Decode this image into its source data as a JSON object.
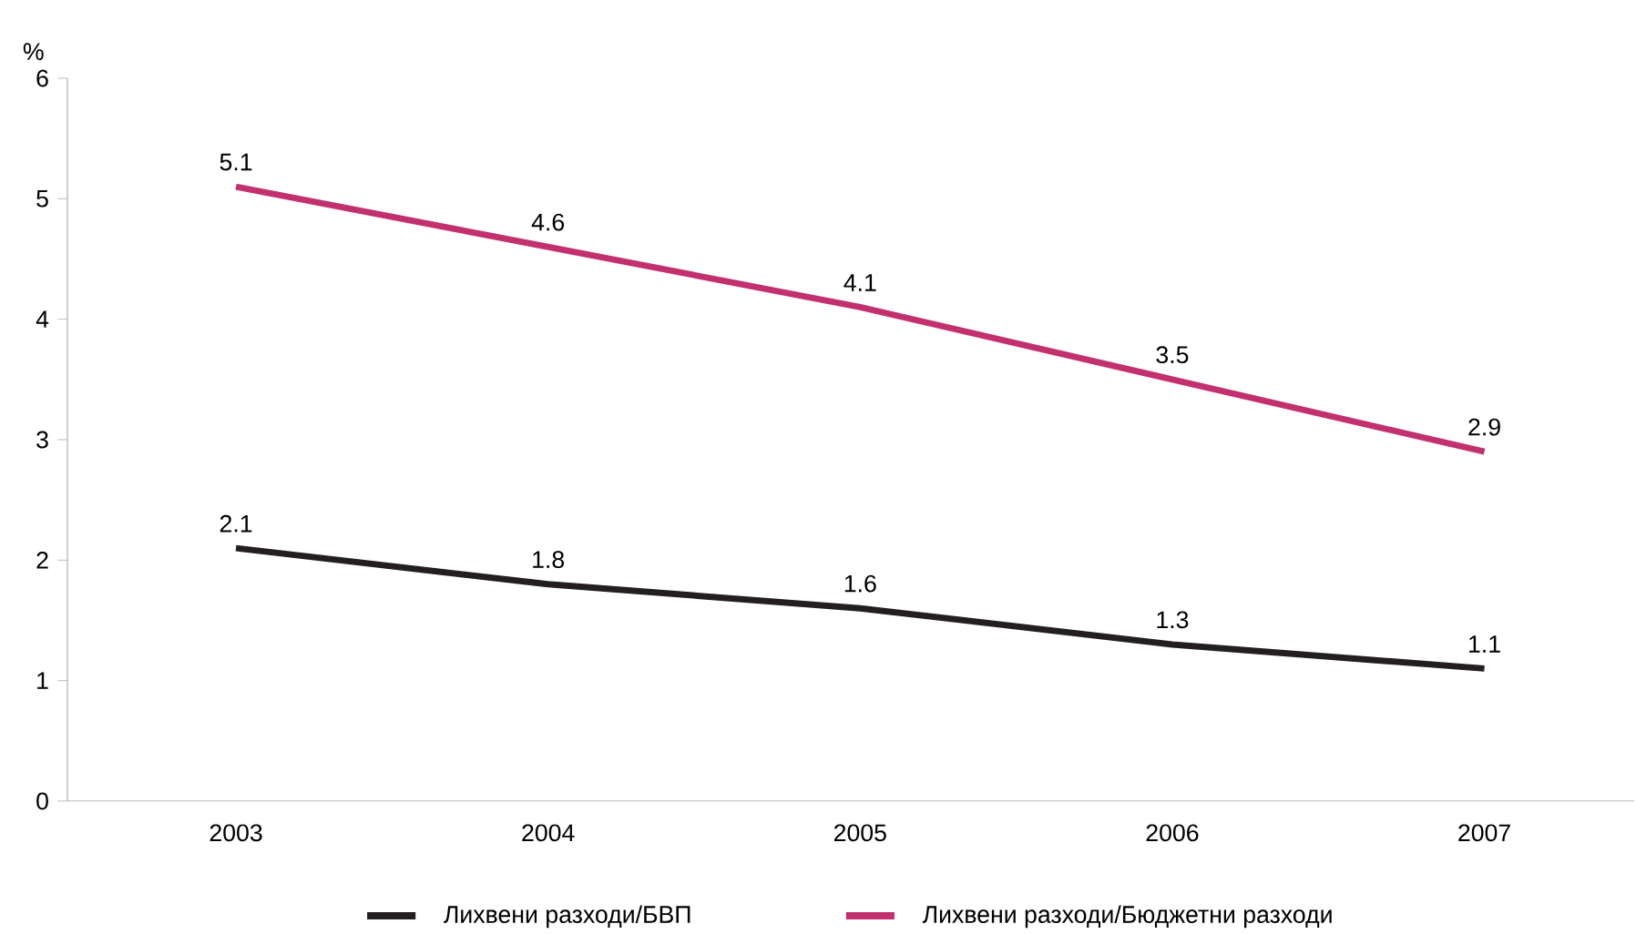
{
  "chart_data": {
    "type": "line",
    "ylabel": "%",
    "categories": [
      "2003",
      "2004",
      "2005",
      "2006",
      "2007"
    ],
    "series": [
      {
        "name": "Лихвени разходи/БВП",
        "color": "#231f20",
        "values": [
          2.1,
          1.8,
          1.6,
          1.3,
          1.1
        ]
      },
      {
        "name": "Лихвени разходи/Бюджетни разходи",
        "color": "#c2306f",
        "values": [
          5.1,
          4.6,
          4.1,
          3.5,
          2.9
        ]
      }
    ],
    "ylim": [
      0,
      6
    ],
    "yticks": [
      0,
      1,
      2,
      3,
      4,
      5,
      6
    ],
    "data_labels": true,
    "legend": "bottom",
    "grid": false,
    "marker": "none",
    "line_style": "solid"
  }
}
